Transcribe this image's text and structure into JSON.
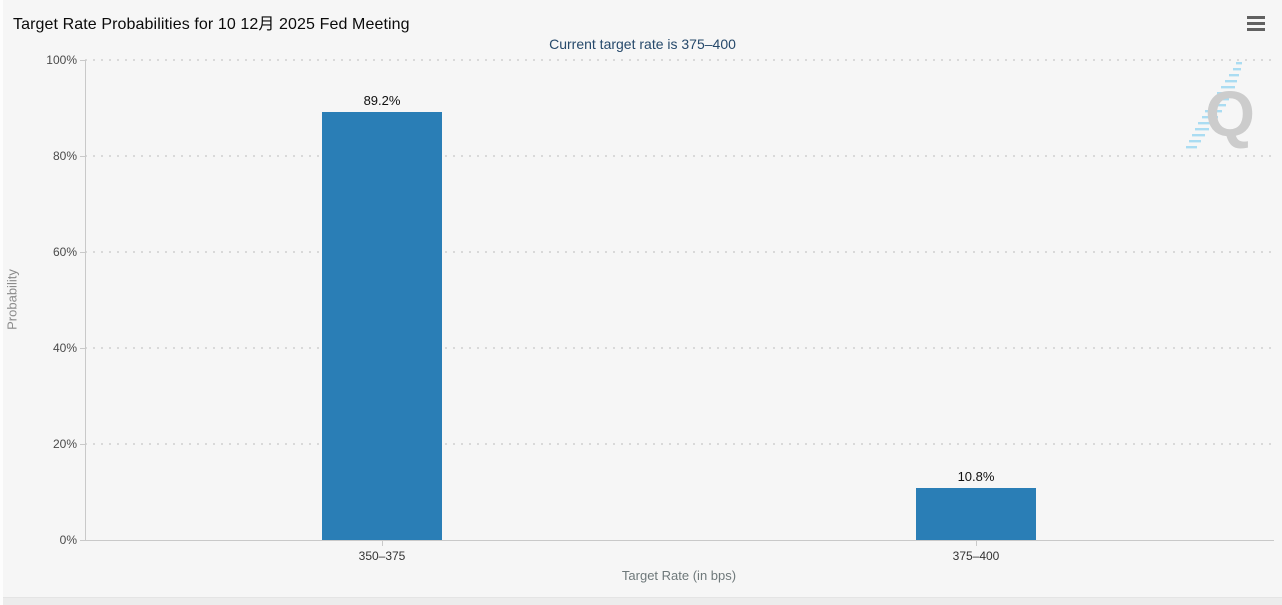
{
  "header": {
    "title": "Target Rate Probabilities for 10 12月 2025 Fed Meeting",
    "menu_icon": "hamburger-icon"
  },
  "chart_data": {
    "type": "bar",
    "title": "Target Rate Probabilities for 10 12月 2025 Fed Meeting",
    "subtitle": "Current target rate is 375–400",
    "current_target_rate": "375–400",
    "categories": [
      "350–375",
      "375–400"
    ],
    "values": [
      89.2,
      10.8
    ],
    "value_labels": [
      "89.2%",
      "10.8%"
    ],
    "xlabel": "Target Rate (in bps)",
    "ylabel": "Probability",
    "ylim": [
      0,
      100
    ],
    "yticks": [
      0,
      20,
      40,
      60,
      80,
      100
    ],
    "ytick_labels": [
      "0%",
      "20%",
      "40%",
      "60%",
      "80%",
      "100%"
    ],
    "grid": true,
    "legend": "none",
    "bar_color": "#2a7eb6"
  },
  "watermark": {
    "letter": "Q"
  },
  "colors": {
    "background": "#f6f6f6",
    "bar": "#2a7eb6",
    "axis_line": "#c9c9c9",
    "gridline": "#d9d9d9",
    "subtitle": "#26496b",
    "watermark_letter": "#cccccc",
    "watermark_stripes": "#aadcf2"
  }
}
